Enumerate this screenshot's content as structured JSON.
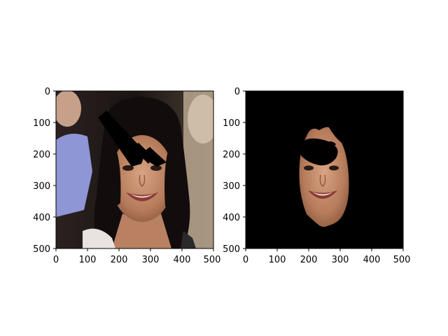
{
  "figure": {
    "background_color": "#ffffff"
  },
  "panels": [
    {
      "name": "original-photo",
      "description_icon": "portrait-photo-icon",
      "x_ticks": [
        "0",
        "100",
        "200",
        "300",
        "400",
        "500"
      ],
      "y_ticks": [
        "0",
        "100",
        "200",
        "300",
        "400",
        "500"
      ],
      "x_range": [
        0,
        500
      ],
      "y_range": [
        0,
        500
      ],
      "y_inverted": true,
      "background_color": "#3a2f2a"
    },
    {
      "name": "masked-face",
      "description_icon": "masked-face-icon",
      "x_ticks": [
        "0",
        "100",
        "200",
        "300",
        "400",
        "500"
      ],
      "y_ticks": [
        "0",
        "100",
        "200",
        "300",
        "400",
        "500"
      ],
      "x_range": [
        0,
        500
      ],
      "y_range": [
        0,
        500
      ],
      "y_inverted": true,
      "background_color": "#000000"
    }
  ],
  "colors": {
    "skin": "#c89070",
    "skin_shadow": "#a46a4c",
    "hair": "#120d0c",
    "occlusion": "#000000",
    "shirt_blue": "#8f96d6",
    "left_person_skin": "#c7a08a",
    "right_wall": "#c9b9a3",
    "lips": "#8c3a36",
    "teeth": "#efe6dc",
    "white_top": "#e8e3e1"
  }
}
